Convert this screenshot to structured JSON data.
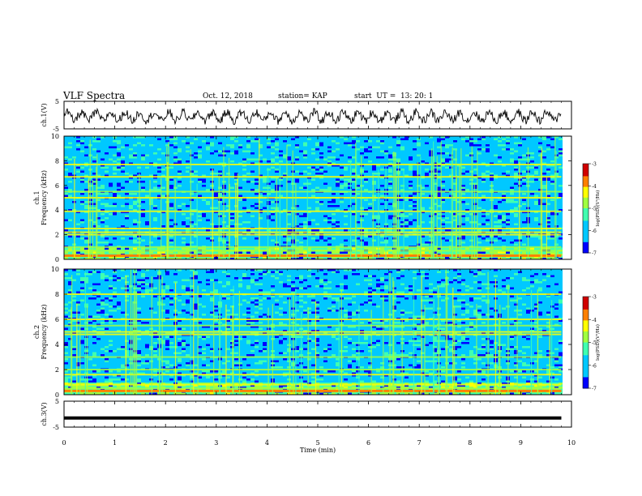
{
  "header": {
    "title": "VLF Spectra",
    "date": "Oct. 12, 2018",
    "station": "station= KAP",
    "start": "start  UT =  13: 20: 1"
  },
  "chart_data": [
    {
      "type": "line",
      "panel": "ch1-waveform",
      "ylabel": "ch.1(V)",
      "ylim": [
        -5,
        5
      ],
      "yticks": [
        "5",
        "-5"
      ],
      "xlim": [
        0,
        10
      ],
      "series": [
        {
          "x_range": [
            0,
            9.8
          ],
          "y_level": -0.5,
          "y_amplitude": 3
        }
      ],
      "color": "#000000"
    },
    {
      "type": "heatmap",
      "panel": "ch1-spectrogram",
      "ylabel": "ch.1\nFrequency  (kHz)",
      "ylim": [
        0,
        10
      ],
      "yticks": [
        "0",
        "2",
        "4",
        "6",
        "8",
        "10"
      ],
      "xlim": [
        0,
        10
      ],
      "data_xmax": 9.8,
      "bands_khz": [
        0.3,
        0.7,
        1.0,
        2.0,
        2.2,
        2.5,
        3.9,
        5.0,
        5.5,
        6.7,
        7.7
      ],
      "colorbar": {
        "label": "log(PSD)(V²/Hz)",
        "range": [
          -7,
          -3
        ],
        "ticks": [
          "-3",
          "-4",
          "-5",
          "-6",
          "-7"
        ]
      }
    },
    {
      "type": "heatmap",
      "panel": "ch2-spectrogram",
      "ylabel": "ch.2\nFrequency  (kHz)",
      "ylim": [
        0,
        10
      ],
      "yticks": [
        "0",
        "2",
        "4",
        "6",
        "8",
        "10"
      ],
      "xlim": [
        0,
        10
      ],
      "data_xmax": 9.8,
      "bands_khz": [
        0.5,
        0.8,
        1.6,
        2.0,
        3.0,
        4.8,
        5.0,
        5.5,
        6.0,
        8.0
      ],
      "colorbar": {
        "label": "log(PSD)(V²/Hz)",
        "range": [
          -7,
          -3
        ],
        "ticks": [
          "-3",
          "-4",
          "-5",
          "-6",
          "-7"
        ]
      }
    },
    {
      "type": "line",
      "panel": "ch3-waveform",
      "ylabel": "ch.3(V)",
      "ylim": [
        -5,
        5
      ],
      "yticks": [
        "5",
        "-5"
      ],
      "xlim": [
        0,
        10
      ],
      "series": [
        {
          "x_range": [
            0,
            9.8
          ],
          "y_level": -1.5,
          "y_amplitude": 0
        }
      ],
      "color": "#000000"
    }
  ],
  "xaxis": {
    "label": "Time  (min)",
    "ticks": [
      "0",
      "1",
      "2",
      "3",
      "4",
      "5",
      "6",
      "7",
      "8",
      "9",
      "10"
    ]
  }
}
